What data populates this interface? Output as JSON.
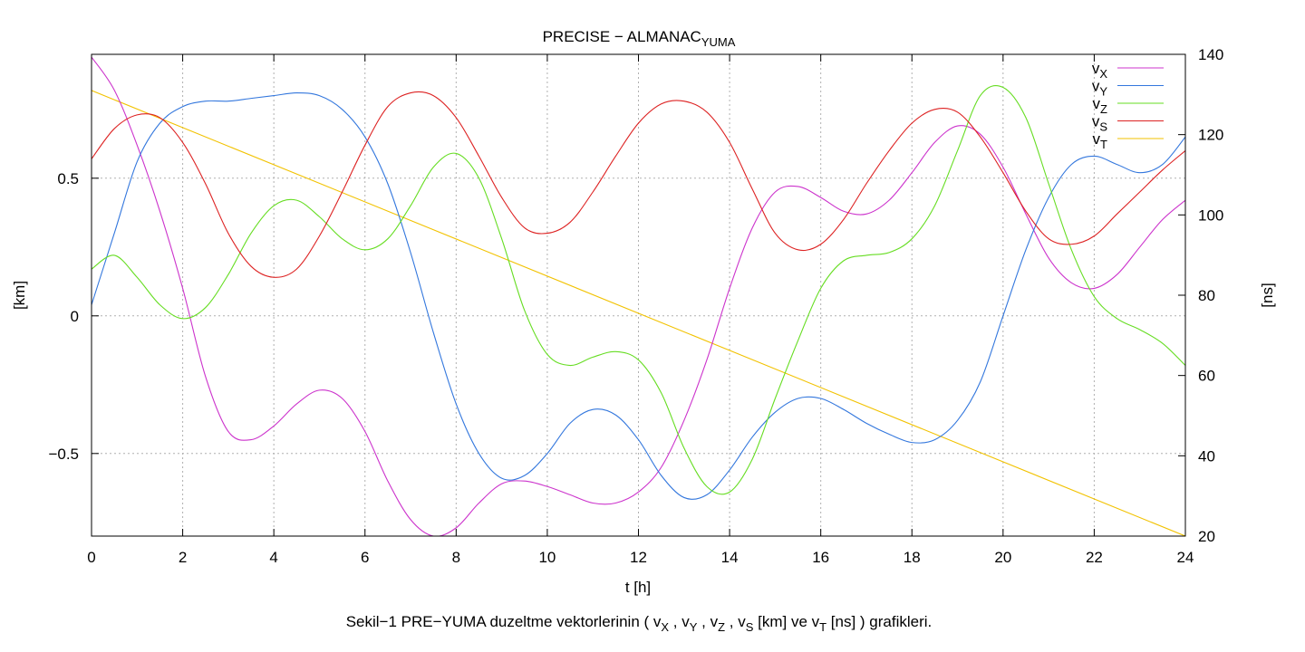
{
  "chart_data": {
    "type": "line",
    "title": "PRECISE − ALMANAC",
    "title_sub": "YUMA",
    "xlabel": "t [h]",
    "ylabel_left": "[km]",
    "ylabel_right": "[ns]",
    "xlim": [
      0,
      24
    ],
    "ylim_left": [
      -0.8,
      0.95
    ],
    "ylim_right": [
      20,
      140
    ],
    "x_ticks": [
      0,
      2,
      4,
      6,
      8,
      10,
      12,
      14,
      16,
      18,
      20,
      22,
      24
    ],
    "y_ticks_left": [
      -0.5,
      0,
      0.5
    ],
    "y_tick_labels_left": [
      "−0.5",
      "0",
      "0.5"
    ],
    "y_ticks_right": [
      20,
      40,
      60,
      80,
      100,
      120,
      140
    ],
    "grid": true,
    "legend_position": "top-right",
    "caption": {
      "prefix": "Sekil−1 PRE−YUMA duzeltme vektorlerinin ( ",
      "parts": [
        {
          "v": "v",
          "s": "X",
          "after": " , "
        },
        {
          "v": "v",
          "s": "Y",
          "after": " , "
        },
        {
          "v": "v",
          "s": "Z",
          "after": " , "
        },
        {
          "v": "v",
          "s": "S",
          "after": " [km] ve "
        },
        {
          "v": "v",
          "s": "T",
          "after": " [ns] ) grafikleri."
        }
      ]
    },
    "series": [
      {
        "name": "v",
        "sub": "X",
        "color": "#cc33cc",
        "axis": "left",
        "x": [
          0,
          0.5,
          1,
          1.5,
          2,
          2.5,
          3,
          3.5,
          4,
          4.5,
          5,
          5.5,
          6,
          6.5,
          7,
          7.5,
          8,
          8.5,
          9,
          9.5,
          10,
          10.5,
          11,
          11.5,
          12,
          12.5,
          13,
          13.5,
          14,
          14.5,
          15,
          15.5,
          16,
          16.5,
          17,
          17.5,
          18,
          18.5,
          19,
          19.5,
          20,
          20.5,
          21,
          21.5,
          22,
          22.5,
          23,
          23.5,
          24
        ],
        "values": [
          0.94,
          0.82,
          0.62,
          0.38,
          0.1,
          -0.22,
          -0.42,
          -0.45,
          -0.4,
          -0.32,
          -0.27,
          -0.3,
          -0.42,
          -0.6,
          -0.74,
          -0.8,
          -0.77,
          -0.68,
          -0.61,
          -0.6,
          -0.62,
          -0.65,
          -0.68,
          -0.68,
          -0.64,
          -0.55,
          -0.38,
          -0.16,
          0.1,
          0.32,
          0.45,
          0.47,
          0.43,
          0.38,
          0.37,
          0.42,
          0.52,
          0.63,
          0.69,
          0.66,
          0.54,
          0.37,
          0.21,
          0.12,
          0.1,
          0.15,
          0.25,
          0.35,
          0.42
        ]
      },
      {
        "name": "v",
        "sub": "Y",
        "color": "#3377dd",
        "axis": "left",
        "x": [
          0,
          0.5,
          1,
          1.5,
          2,
          2.5,
          3,
          3.5,
          4,
          4.5,
          5,
          5.5,
          6,
          6.5,
          7,
          7.5,
          8,
          8.5,
          9,
          9.5,
          10,
          10.5,
          11,
          11.5,
          12,
          12.5,
          13,
          13.5,
          14,
          14.5,
          15,
          15.5,
          16,
          16.5,
          17,
          17.5,
          18,
          18.5,
          19,
          19.5,
          20,
          20.5,
          21,
          21.5,
          22,
          22.5,
          23,
          23.5,
          24
        ],
        "values": [
          0.04,
          0.3,
          0.56,
          0.7,
          0.76,
          0.78,
          0.78,
          0.79,
          0.8,
          0.81,
          0.8,
          0.75,
          0.65,
          0.48,
          0.23,
          -0.06,
          -0.32,
          -0.5,
          -0.59,
          -0.58,
          -0.5,
          -0.39,
          -0.34,
          -0.36,
          -0.45,
          -0.58,
          -0.66,
          -0.65,
          -0.56,
          -0.44,
          -0.35,
          -0.3,
          -0.3,
          -0.34,
          -0.39,
          -0.43,
          -0.46,
          -0.45,
          -0.38,
          -0.24,
          0.0,
          0.24,
          0.43,
          0.55,
          0.58,
          0.55,
          0.52,
          0.55,
          0.65
        ]
      },
      {
        "name": "v",
        "sub": "Z",
        "color": "#66dd22",
        "axis": "left",
        "x": [
          0,
          0.5,
          1,
          1.5,
          2,
          2.5,
          3,
          3.5,
          4,
          4.5,
          5,
          5.5,
          6,
          6.5,
          7,
          7.5,
          8,
          8.5,
          9,
          9.5,
          10,
          10.5,
          11,
          11.5,
          12,
          12.5,
          13,
          13.5,
          14,
          14.5,
          15,
          15.5,
          16,
          16.5,
          17,
          17.5,
          18,
          18.5,
          19,
          19.5,
          20,
          20.5,
          21,
          21.5,
          22,
          22.5,
          23,
          23.5,
          24
        ],
        "values": [
          0.17,
          0.22,
          0.14,
          0.04,
          -0.01,
          0.03,
          0.15,
          0.3,
          0.4,
          0.42,
          0.36,
          0.28,
          0.24,
          0.28,
          0.4,
          0.54,
          0.59,
          0.5,
          0.28,
          0.02,
          -0.14,
          -0.18,
          -0.15,
          -0.13,
          -0.16,
          -0.28,
          -0.48,
          -0.62,
          -0.64,
          -0.52,
          -0.3,
          -0.09,
          0.1,
          0.2,
          0.22,
          0.23,
          0.28,
          0.4,
          0.6,
          0.8,
          0.83,
          0.72,
          0.48,
          0.24,
          0.07,
          -0.01,
          -0.05,
          -0.1,
          -0.18
        ]
      },
      {
        "name": "v",
        "sub": "S",
        "color": "#dd2222",
        "axis": "left",
        "x": [
          0,
          0.5,
          1,
          1.5,
          2,
          2.5,
          3,
          3.5,
          4,
          4.5,
          5,
          5.5,
          6,
          6.5,
          7,
          7.5,
          8,
          8.5,
          9,
          9.5,
          10,
          10.5,
          11,
          11.5,
          12,
          12.5,
          13,
          13.5,
          14,
          14.5,
          15,
          15.5,
          16,
          16.5,
          17,
          17.5,
          18,
          18.5,
          19,
          19.5,
          20,
          20.5,
          21,
          21.5,
          22,
          22.5,
          23,
          23.5,
          24
        ],
        "values": [
          0.57,
          0.68,
          0.73,
          0.72,
          0.63,
          0.48,
          0.3,
          0.18,
          0.14,
          0.17,
          0.29,
          0.45,
          0.62,
          0.76,
          0.81,
          0.8,
          0.72,
          0.58,
          0.43,
          0.32,
          0.3,
          0.34,
          0.45,
          0.58,
          0.7,
          0.77,
          0.78,
          0.74,
          0.63,
          0.46,
          0.3,
          0.24,
          0.26,
          0.35,
          0.48,
          0.6,
          0.7,
          0.75,
          0.74,
          0.65,
          0.52,
          0.38,
          0.28,
          0.26,
          0.29,
          0.37,
          0.45,
          0.53,
          0.6
        ]
      },
      {
        "name": "v",
        "sub": "T",
        "color": "#f2c200",
        "axis": "right",
        "x": [
          0,
          24
        ],
        "values": [
          131,
          20
        ]
      }
    ]
  }
}
